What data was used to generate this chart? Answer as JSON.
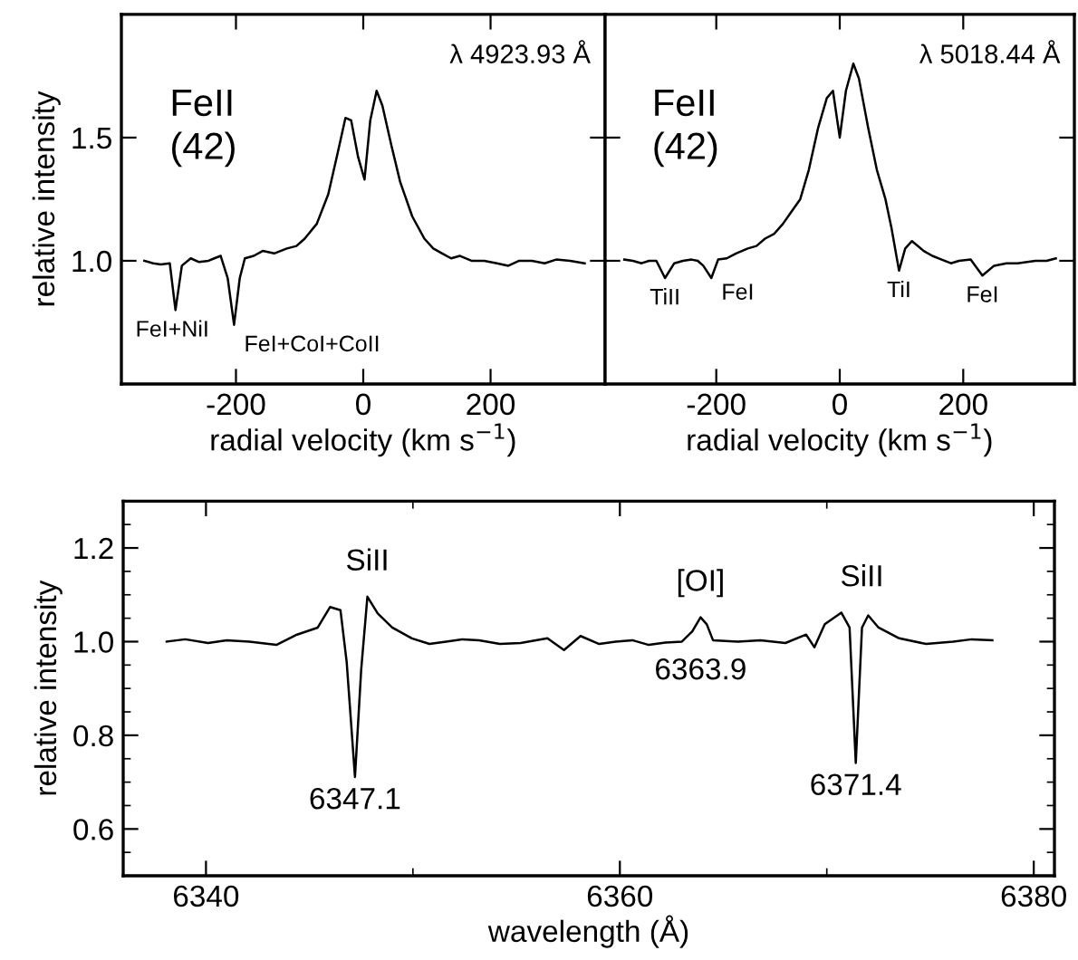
{
  "chart_data": [
    {
      "type": "line",
      "xlabel": "radial velocity (km s$^{−1}$)",
      "ylabel": "relative intensity",
      "xlim": [
        -380,
        380
      ],
      "ylim": [
        0.5,
        2.0
      ],
      "xticks": [
        -200,
        0,
        200
      ],
      "yticks": [
        {
          "value": 1.0,
          "label": "1.0"
        },
        1.5
      ],
      "annotations": [
        "FeII\n(42)",
        "λ 4923.93 Å",
        {
          "text": "FeI+NiI",
          "x": -300,
          "y": 0.8
        },
        {
          "text": "FeI+CoI+CoII",
          "x": -203,
          "y": 0.74
        }
      ],
      "series": [
        {
          "color": "#000000",
          "x": [
            -344,
            -330,
            -318,
            -304,
            -295,
            -285,
            -271,
            -258,
            -243,
            -234,
            -224,
            -213,
            -203,
            -194,
            -186,
            -172,
            -158,
            -140,
            -120,
            -105,
            -92,
            -73,
            -55,
            -40,
            -28,
            -19,
            -8,
            2,
            11,
            21,
            30,
            44,
            58,
            77,
            96,
            110,
            124,
            138,
            152,
            170,
            190,
            210,
            228,
            245,
            265,
            285,
            303,
            325,
            348
          ],
          "values": [
            1.0,
            0.99,
            0.985,
            0.99,
            0.8,
            0.98,
            1.01,
            0.995,
            1.0,
            1.01,
            1.02,
            0.93,
            0.74,
            0.93,
            1.01,
            1.02,
            1.04,
            1.03,
            1.05,
            1.06,
            1.09,
            1.15,
            1.27,
            1.44,
            1.58,
            1.57,
            1.42,
            1.33,
            1.57,
            1.69,
            1.63,
            1.47,
            1.32,
            1.18,
            1.09,
            1.05,
            1.03,
            1.01,
            1.02,
            1.0,
            1.0,
            0.99,
            0.98,
            1.0,
            1.0,
            0.99,
            1.005,
            1.0,
            0.99
          ]
        }
      ]
    },
    {
      "type": "line",
      "xlabel": "radial velocity (km s$^{−1}$)",
      "xlim": [
        -380,
        380
      ],
      "ylim": [
        0.5,
        2.0
      ],
      "xticks": [
        -200,
        0,
        200
      ],
      "yticks": [
        1.0,
        1.5
      ],
      "tick_labels": "x",
      "annotations": [
        "FeII\n(42)",
        "λ 5018.44 Å",
        {
          "text": "TiII",
          "x": -283,
          "y": 0.93
        },
        {
          "text": "FeI",
          "x": -208,
          "y": 0.93
        },
        {
          "text": "TiI",
          "x": 96,
          "y": 0.96
        },
        {
          "text": "FeI",
          "x": 231,
          "y": 0.94
        }
      ],
      "series": [
        {
          "color": "#000000",
          "x": [
            -349,
            -335,
            -321,
            -309,
            -297,
            -283,
            -268,
            -254,
            -240,
            -230,
            -221,
            -208,
            -197,
            -183,
            -168,
            -149,
            -135,
            -121,
            -106,
            -92,
            -78,
            -64,
            -50,
            -35,
            -21,
            -11,
            0,
            10,
            22,
            31,
            46,
            60,
            74,
            84,
            96,
            106,
            117,
            136,
            150,
            165,
            180,
            193,
            212,
            231,
            250,
            270,
            288,
            317,
            335,
            350
          ],
          "values": [
            1.005,
            1.0,
            0.99,
            1.0,
            1.0,
            0.93,
            0.99,
            1.0,
            1.005,
            1.0,
            0.98,
            0.93,
            1.005,
            1.01,
            1.03,
            1.05,
            1.06,
            1.09,
            1.11,
            1.15,
            1.2,
            1.25,
            1.37,
            1.54,
            1.66,
            1.69,
            1.5,
            1.69,
            1.8,
            1.74,
            1.54,
            1.37,
            1.25,
            1.13,
            0.96,
            1.05,
            1.08,
            1.04,
            1.02,
            1.005,
            0.99,
            1.0,
            1.005,
            0.94,
            0.98,
            0.99,
            0.99,
            1.0,
            1.0,
            1.01
          ]
        }
      ]
    },
    {
      "type": "line",
      "xlabel": "wavelength (Å)",
      "ylabel": "relative intensity",
      "xlim": [
        6336,
        6381
      ],
      "ylim": [
        0.5,
        1.3
      ],
      "xticks": [
        6340,
        {
          "value": 6350,
          "label": null
        },
        6360,
        {
          "value": 6370,
          "label": null
        },
        6380
      ],
      "yticks": [
        {
          "value": 0.55,
          "label": null
        },
        0.6,
        {
          "value": 0.65,
          "label": null
        },
        {
          "value": 0.7,
          "label": null
        },
        {
          "value": 0.75,
          "label": null
        },
        0.8,
        {
          "value": 0.85,
          "label": null
        },
        {
          "value": 0.9,
          "label": null
        },
        {
          "value": 0.95,
          "label": null
        },
        {
          "value": 1.0,
          "label": "1.0"
        },
        {
          "value": 1.05,
          "label": null
        },
        {
          "value": 1.1,
          "label": null
        },
        {
          "value": 1.15,
          "label": null
        },
        1.2,
        {
          "value": 1.25,
          "label": null
        }
      ],
      "annotations": [
        {
          "text": "SiII",
          "x": 6347.8,
          "y": 1.096
        },
        {
          "text": "6347.1",
          "x": 6347.2,
          "y": 0.711
        },
        {
          "text": "[OI]",
          "x": 6363.9,
          "y": 1.052
        },
        {
          "text": "6363.9",
          "x": 6363.9,
          "y": 1.052
        },
        {
          "text": "SiII",
          "x": 6371.7,
          "y": 1.062
        },
        {
          "text": "6371.4",
          "x": 6371.4,
          "y": 0.741
        }
      ],
      "series": [
        {
          "color": "#000000",
          "x": [
            6338.1,
            6339.0,
            6340.1,
            6341.0,
            6342.1,
            6343.4,
            6344.4,
            6345.4,
            6346.0,
            6346.5,
            6346.8,
            6347.2,
            6347.5,
            6347.8,
            6348.3,
            6349.0,
            6349.95,
            6350.8,
            6351.6,
            6352.4,
            6353.2,
            6354.2,
            6355.2,
            6356.5,
            6357.3,
            6358.1,
            6359.0,
            6359.8,
            6360.6,
            6361.4,
            6362.2,
            6363.0,
            6363.5,
            6363.9,
            6364.2,
            6364.5,
            6365.7,
            6366.8,
            6368.0,
            6369.0,
            6369.4,
            6369.9,
            6370.7,
            6371.1,
            6371.4,
            6371.7,
            6372.0,
            6372.5,
            6373.5,
            6374.8,
            6376.1,
            6377.0,
            6378.0
          ],
          "values": [
            1.0,
            1.005,
            0.997,
            1.003,
            1.0,
            0.993,
            1.015,
            1.03,
            1.074,
            1.067,
            0.956,
            0.711,
            0.94,
            1.096,
            1.06,
            1.03,
            1.007,
            0.995,
            1.0,
            1.005,
            1.003,
            0.995,
            0.997,
            1.007,
            0.982,
            1.012,
            0.995,
            1.0,
            1.003,
            0.993,
            0.998,
            1.0,
            1.022,
            1.052,
            1.037,
            1.003,
            1.0,
            1.003,
            0.997,
            1.015,
            0.988,
            1.037,
            1.062,
            1.03,
            0.741,
            1.03,
            1.056,
            1.03,
            1.007,
            0.995,
            1.0,
            1.005,
            1.003
          ]
        }
      ]
    }
  ]
}
